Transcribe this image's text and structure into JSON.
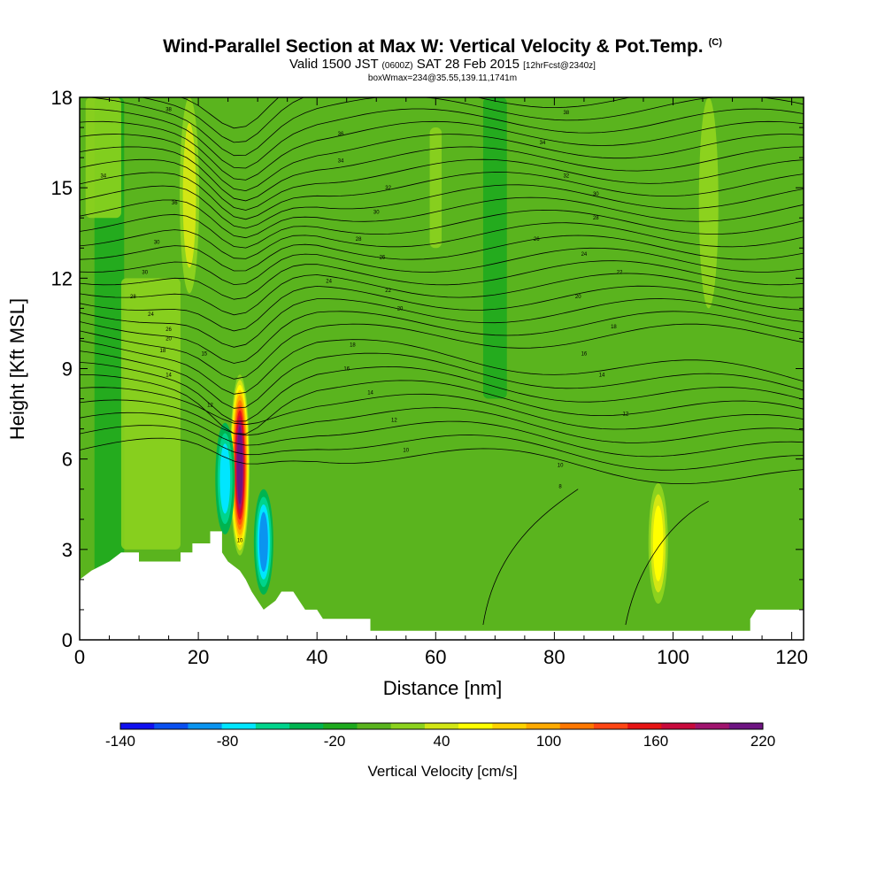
{
  "header": {
    "title": "Wind-Parallel Section at Max W: Vertical Velocity & Pot.Temp.",
    "copyright": "(C)",
    "valid_prefix": "Valid 1500 JST",
    "valid_utc": "(0600Z)",
    "valid_date": "SAT 28 Feb 2015",
    "forecast_tag": "[12hrFcst@2340z]",
    "box_info": "boxWmax=234@35.55,139.11,1741m"
  },
  "chart_data": {
    "type": "heatmap",
    "xlabel": "Distance [nm]",
    "ylabel": "Height [Kft MSL]",
    "xlim": [
      0,
      122
    ],
    "ylim": [
      0,
      18
    ],
    "x_ticks": [
      0,
      20,
      40,
      60,
      80,
      100,
      120
    ],
    "y_ticks": [
      0,
      3,
      6,
      9,
      12,
      15,
      18
    ],
    "colorbar": {
      "label": "Vertical Velocity [cm/s]",
      "min": -140,
      "max": 220,
      "step": 20,
      "tick_labels": [
        -140,
        -80,
        -20,
        40,
        100,
        160,
        220
      ],
      "colors": [
        "#1010f0",
        "#0a50f0",
        "#0a94f0",
        "#00e6ff",
        "#00d48c",
        "#00b450",
        "#1eaa1e",
        "#5ab41e",
        "#8cd21e",
        "#d2e614",
        "#ffff00",
        "#ffd200",
        "#ffaa00",
        "#ff7800",
        "#ff4614",
        "#e61414",
        "#c80a3c",
        "#a0146e",
        "#6e1482"
      ]
    },
    "background_class": "0 to 20 cm/s",
    "terrain_km_profile": [
      [
        0,
        2
      ],
      [
        2,
        2.3
      ],
      [
        5,
        2.6
      ],
      [
        7,
        2.9
      ],
      [
        10,
        2.9
      ],
      [
        10,
        2.6
      ],
      [
        17,
        2.6
      ],
      [
        17,
        2.9
      ],
      [
        19,
        2.9
      ],
      [
        19,
        3.2
      ],
      [
        22,
        3.2
      ],
      [
        22,
        3.6
      ],
      [
        24,
        3.6
      ],
      [
        24,
        2.9
      ],
      [
        25,
        2.6
      ],
      [
        27,
        2.3
      ],
      [
        28,
        2
      ],
      [
        29,
        1.6
      ],
      [
        30,
        1.3
      ],
      [
        31,
        1
      ],
      [
        33,
        1.3
      ],
      [
        34,
        1.6
      ],
      [
        36,
        1.6
      ],
      [
        37,
        1.3
      ],
      [
        38,
        1
      ],
      [
        40,
        1
      ],
      [
        41,
        0.7
      ],
      [
        49,
        0.7
      ],
      [
        49,
        0.3
      ],
      [
        113,
        0.3
      ],
      [
        113,
        0.7
      ],
      [
        114,
        1
      ],
      [
        122,
        1
      ]
    ],
    "vertical_velocity_features": [
      {
        "x": 27,
        "z_range": [
          2.8,
          8.8
        ],
        "w_peak": 234
      },
      {
        "x": 24.5,
        "z_range": [
          3.5,
          7.2
        ],
        "w_peak": -80
      },
      {
        "x": 31,
        "z_range": [
          1.5,
          5.0
        ],
        "w_peak": -90
      },
      {
        "x": 18.5,
        "z_range": [
          11.5,
          18
        ],
        "w_peak": 50
      },
      {
        "x": 97.5,
        "z_range": [
          1.2,
          5.2
        ],
        "w_peak": 70
      },
      {
        "x": 106,
        "z_range": [
          11,
          18
        ],
        "w_peak": 30
      }
    ],
    "potential_temperature_labels": [
      {
        "x": 15,
        "z": 17.6,
        "text": "38"
      },
      {
        "x": 4,
        "z": 15.4,
        "text": "34"
      },
      {
        "x": 16,
        "z": 14.5,
        "text": "36"
      },
      {
        "x": 13,
        "z": 13.2,
        "text": "30"
      },
      {
        "x": 11,
        "z": 12.2,
        "text": "30"
      },
      {
        "x": 9,
        "z": 11.4,
        "text": "28"
      },
      {
        "x": 12,
        "z": 10.8,
        "text": "24"
      },
      {
        "x": 15,
        "z": 10.3,
        "text": "26"
      },
      {
        "x": 15,
        "z": 10.0,
        "text": "20"
      },
      {
        "x": 14,
        "z": 9.6,
        "text": "18"
      },
      {
        "x": 21,
        "z": 9.5,
        "text": "15"
      },
      {
        "x": 15,
        "z": 8.8,
        "text": "14"
      },
      {
        "x": 22,
        "z": 7.8,
        "text": "12"
      },
      {
        "x": 27,
        "z": 3.3,
        "text": "10"
      },
      {
        "x": 44,
        "z": 16.8,
        "text": "36"
      },
      {
        "x": 44,
        "z": 15.9,
        "text": "34"
      },
      {
        "x": 52,
        "z": 15.0,
        "text": "32"
      },
      {
        "x": 50,
        "z": 14.2,
        "text": "30"
      },
      {
        "x": 47,
        "z": 13.3,
        "text": "28"
      },
      {
        "x": 51,
        "z": 12.7,
        "text": "26"
      },
      {
        "x": 42,
        "z": 11.9,
        "text": "24"
      },
      {
        "x": 52,
        "z": 11.6,
        "text": "22"
      },
      {
        "x": 54,
        "z": 11.0,
        "text": "20"
      },
      {
        "x": 46,
        "z": 9.8,
        "text": "18"
      },
      {
        "x": 45,
        "z": 9.0,
        "text": "16"
      },
      {
        "x": 49,
        "z": 8.2,
        "text": "14"
      },
      {
        "x": 53,
        "z": 7.3,
        "text": "12"
      },
      {
        "x": 55,
        "z": 6.3,
        "text": "10"
      },
      {
        "x": 82,
        "z": 17.5,
        "text": "38"
      },
      {
        "x": 78,
        "z": 16.5,
        "text": "34"
      },
      {
        "x": 82,
        "z": 15.4,
        "text": "32"
      },
      {
        "x": 87,
        "z": 14.8,
        "text": "30"
      },
      {
        "x": 87,
        "z": 14.0,
        "text": "28"
      },
      {
        "x": 77,
        "z": 13.3,
        "text": "26"
      },
      {
        "x": 85,
        "z": 12.8,
        "text": "24"
      },
      {
        "x": 91,
        "z": 12.2,
        "text": "22"
      },
      {
        "x": 84,
        "z": 11.4,
        "text": "20"
      },
      {
        "x": 90,
        "z": 10.4,
        "text": "18"
      },
      {
        "x": 85,
        "z": 9.5,
        "text": "16"
      },
      {
        "x": 88,
        "z": 8.8,
        "text": "14"
      },
      {
        "x": 92,
        "z": 7.5,
        "text": "12"
      },
      {
        "x": 81,
        "z": 5.8,
        "text": "10"
      },
      {
        "x": 81,
        "z": 5.1,
        "text": "8"
      }
    ]
  }
}
